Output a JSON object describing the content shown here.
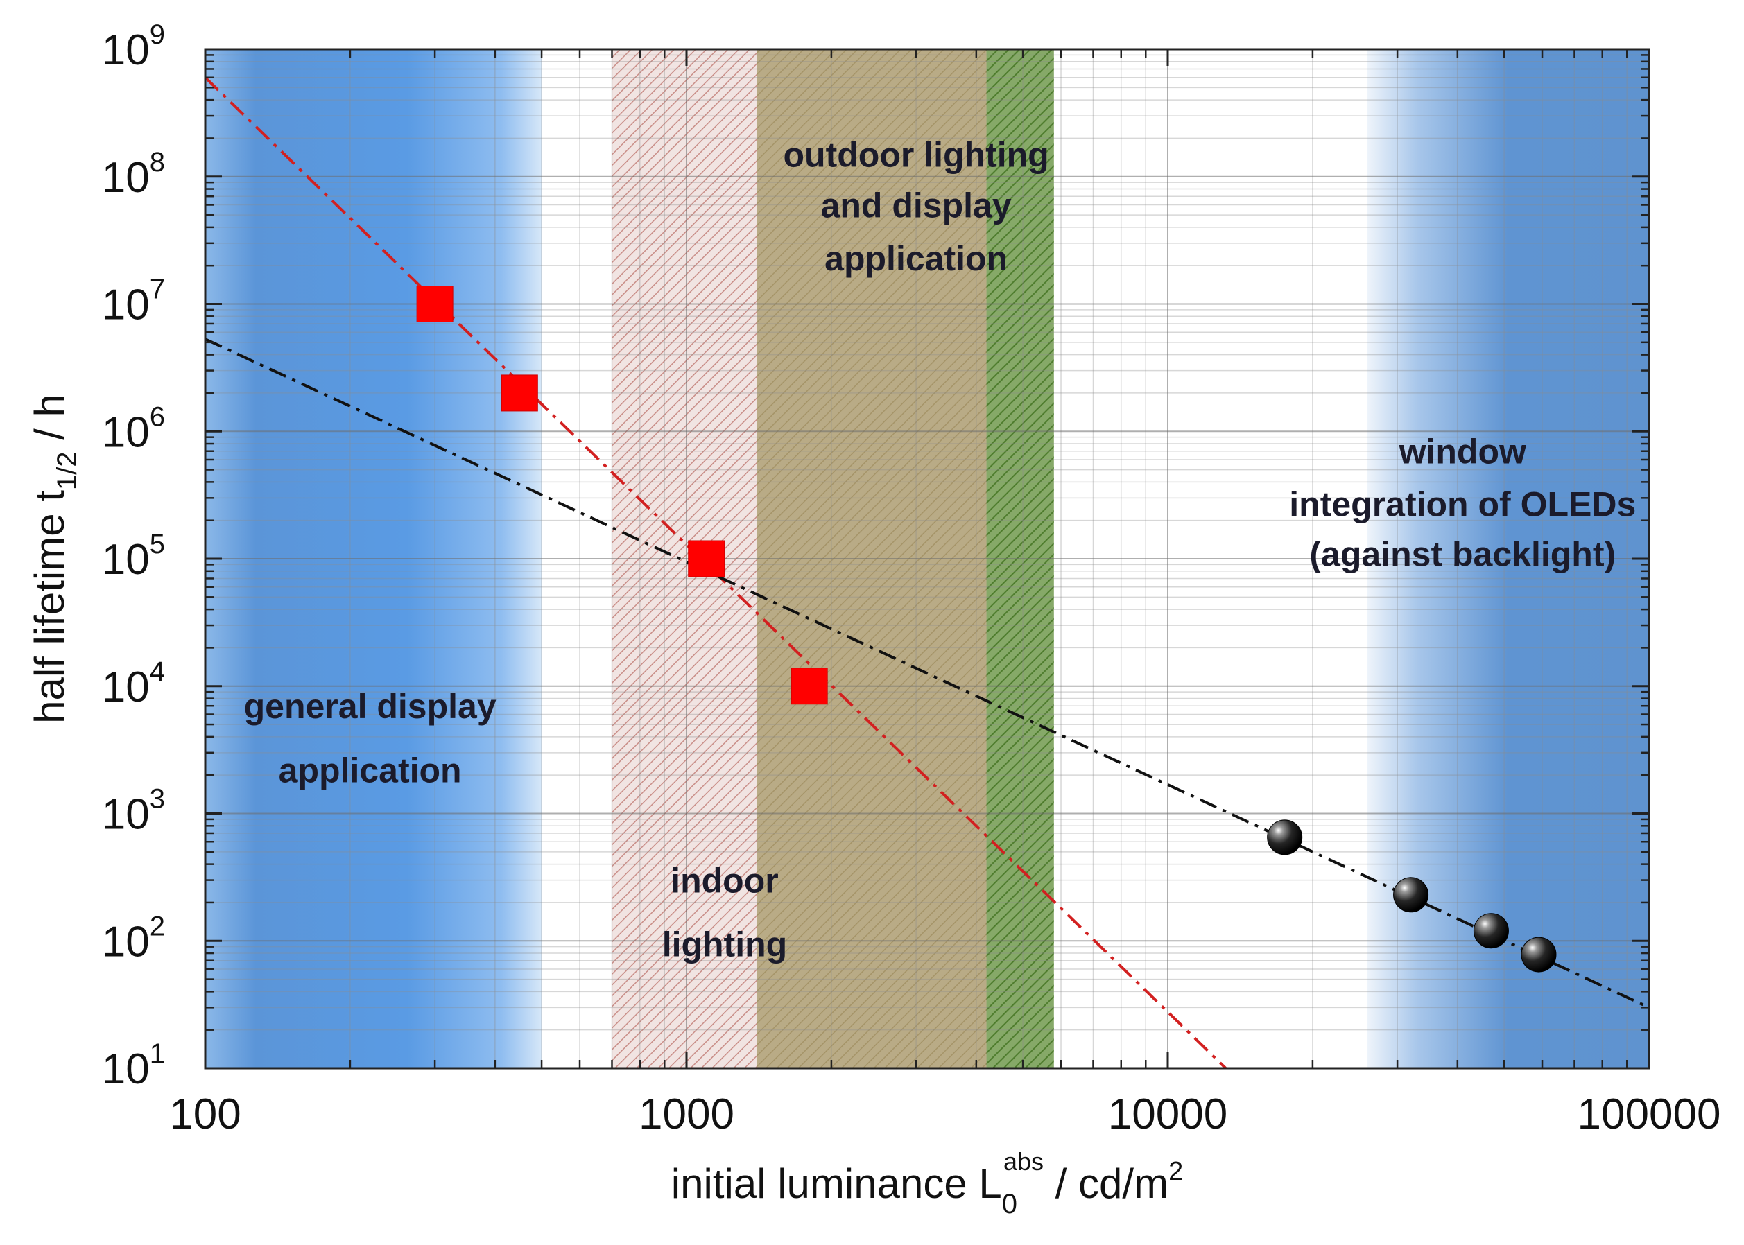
{
  "chart_data": {
    "type": "scatter",
    "x_scale": "log",
    "y_scale": "log",
    "xlim": [
      100,
      100000
    ],
    "ylim": [
      10,
      1000000000
    ],
    "xlabel": {
      "main": "initial luminance L",
      "sub": "0",
      "sup": "abs",
      "unit_pre": " / cd/m",
      "unit_sup": "2"
    },
    "ylabel": {
      "main": "half lifetime t",
      "sub": "1/2",
      "unit": " / h"
    },
    "x_ticks": [
      {
        "value": 100,
        "label": "100"
      },
      {
        "value": 1000,
        "label": "1000"
      },
      {
        "value": 10000,
        "label": "10000"
      },
      {
        "value": 100000,
        "label": "100000"
      }
    ],
    "y_ticks": [
      {
        "value": 10,
        "base": "10",
        "exp": "1"
      },
      {
        "value": 100,
        "base": "10",
        "exp": "2"
      },
      {
        "value": 1000,
        "base": "10",
        "exp": "3"
      },
      {
        "value": 10000,
        "base": "10",
        "exp": "4"
      },
      {
        "value": 100000,
        "base": "10",
        "exp": "5"
      },
      {
        "value": 1000000,
        "base": "10",
        "exp": "6"
      },
      {
        "value": 10000000,
        "base": "10",
        "exp": "7"
      },
      {
        "value": 100000000,
        "base": "10",
        "exp": "8"
      },
      {
        "value": 1000000000,
        "base": "10",
        "exp": "9"
      }
    ],
    "grid": true,
    "regions": [
      {
        "name": "general-display",
        "x_range": [
          100,
          500
        ],
        "style": "blue-gradient",
        "label_lines": [
          "general display",
          "application"
        ],
        "label_x": 220,
        "label_y": [
          7000,
          2200
        ]
      },
      {
        "name": "indoor-lighting",
        "x_range": [
          700,
          1400
        ],
        "style": "red-hatch",
        "label_lines": [
          "indoor",
          "lighting"
        ],
        "label_x": 1200,
        "label_y": [
          300,
          95
        ]
      },
      {
        "name": "outdoor-lighting",
        "x_range": [
          1400,
          4200
        ],
        "style": "olive-hatch",
        "label_lines": [
          "outdoor lighting",
          "and display",
          "application"
        ],
        "label_x": 3000,
        "label_y": [
          150000000,
          60000000,
          23000000
        ]
      },
      {
        "name": "outdoor-green",
        "x_range": [
          4200,
          5800
        ],
        "style": "green-hatch",
        "label_lines": [],
        "label_x": 0,
        "label_y": []
      },
      {
        "name": "window-integration",
        "x_range": [
          26000,
          100000
        ],
        "style": "blue-gradient-right",
        "label_lines": [
          "window",
          "integration of OLEDs",
          "(against backlight)"
        ],
        "label_x": 41000,
        "label_y": [
          700000,
          270000,
          110000
        ]
      }
    ],
    "series": [
      {
        "name": "red-squares",
        "marker": "square",
        "color": "#ff0000",
        "points": [
          [
            300,
            10000000
          ],
          [
            450,
            2000000
          ],
          [
            1100,
            100000
          ],
          [
            1800,
            10000
          ]
        ]
      },
      {
        "name": "black-spheres",
        "marker": "sphere",
        "color": "#111111",
        "points": [
          [
            17500,
            650
          ],
          [
            32000,
            230
          ],
          [
            47000,
            120
          ],
          [
            59000,
            78
          ]
        ]
      }
    ],
    "fit_lines": [
      {
        "name": "red-fit",
        "color": "#d22020",
        "style": "dash-dot",
        "points": [
          [
            100,
            600000000
          ],
          [
            13200,
            10
          ]
        ]
      },
      {
        "name": "black-fit",
        "color": "#111111",
        "style": "dash-dot",
        "points": [
          [
            100,
            5300000
          ],
          [
            100000,
            30
          ]
        ]
      }
    ]
  }
}
